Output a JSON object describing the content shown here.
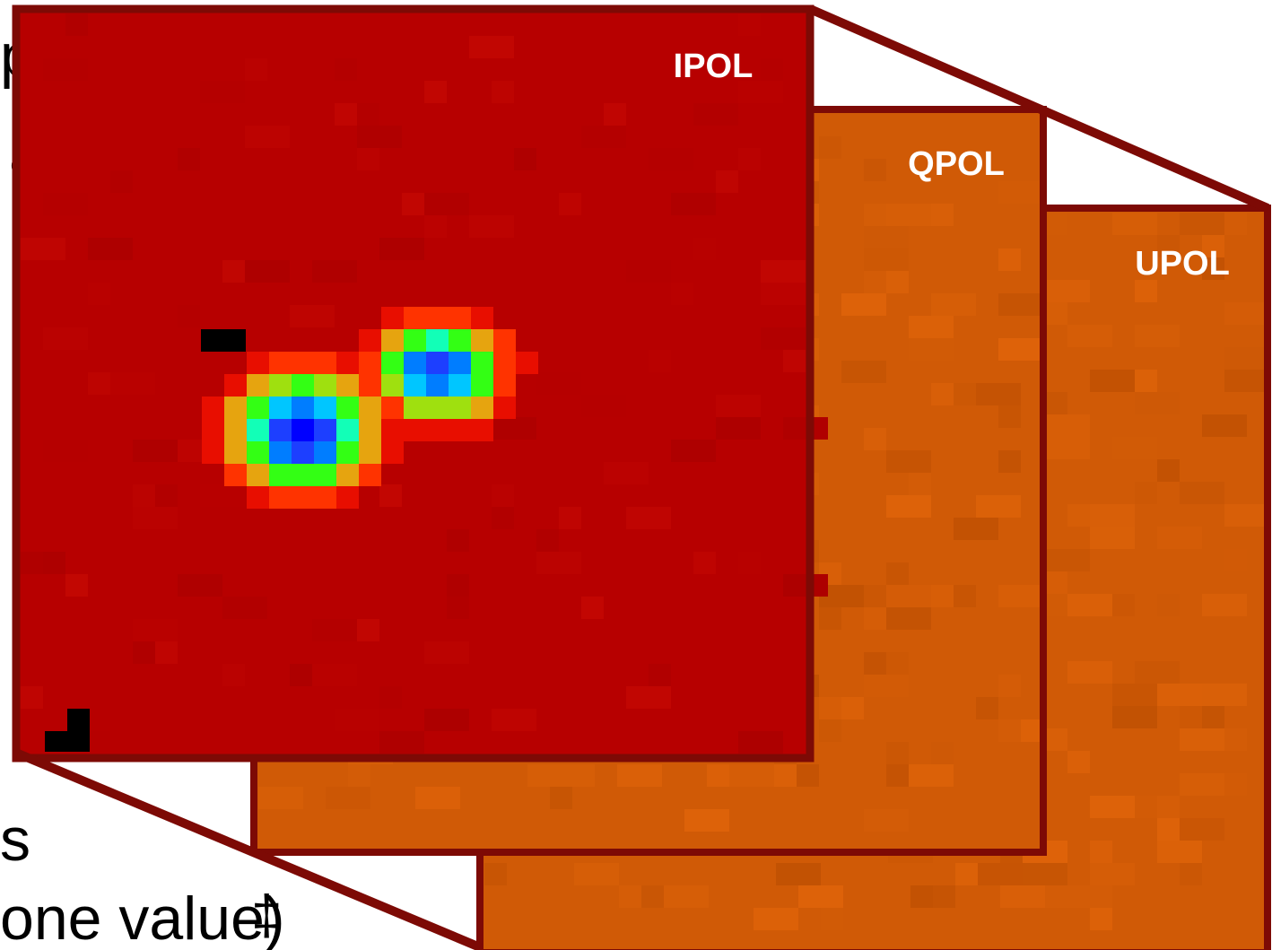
{
  "background_text": {
    "line_1": "pes",
    "line_2": "ation",
    "line_3": "s",
    "line_4": "one value)",
    "cursor_glyph": "‡"
  },
  "planes": [
    {
      "label": "UPOL",
      "fill_color": "#d05a06",
      "border_color": "#7d0a05"
    },
    {
      "label": "QPOL",
      "fill_color": "#d05a06",
      "border_color": "#7d0a05"
    },
    {
      "label": "IPOL",
      "fill_color": "#b70000",
      "border_color": "#7d0a05"
    }
  ],
  "colormap_stops": [
    "#b70000",
    "#e80e00",
    "#ff3300",
    "#e6a40f",
    "#9fe00f",
    "#33ff14",
    "#12ffb7",
    "#00c6ff",
    "#007dff",
    "#1d3fff",
    "#0000ff",
    "#000000"
  ],
  "connector_color": "#7d0a05"
}
